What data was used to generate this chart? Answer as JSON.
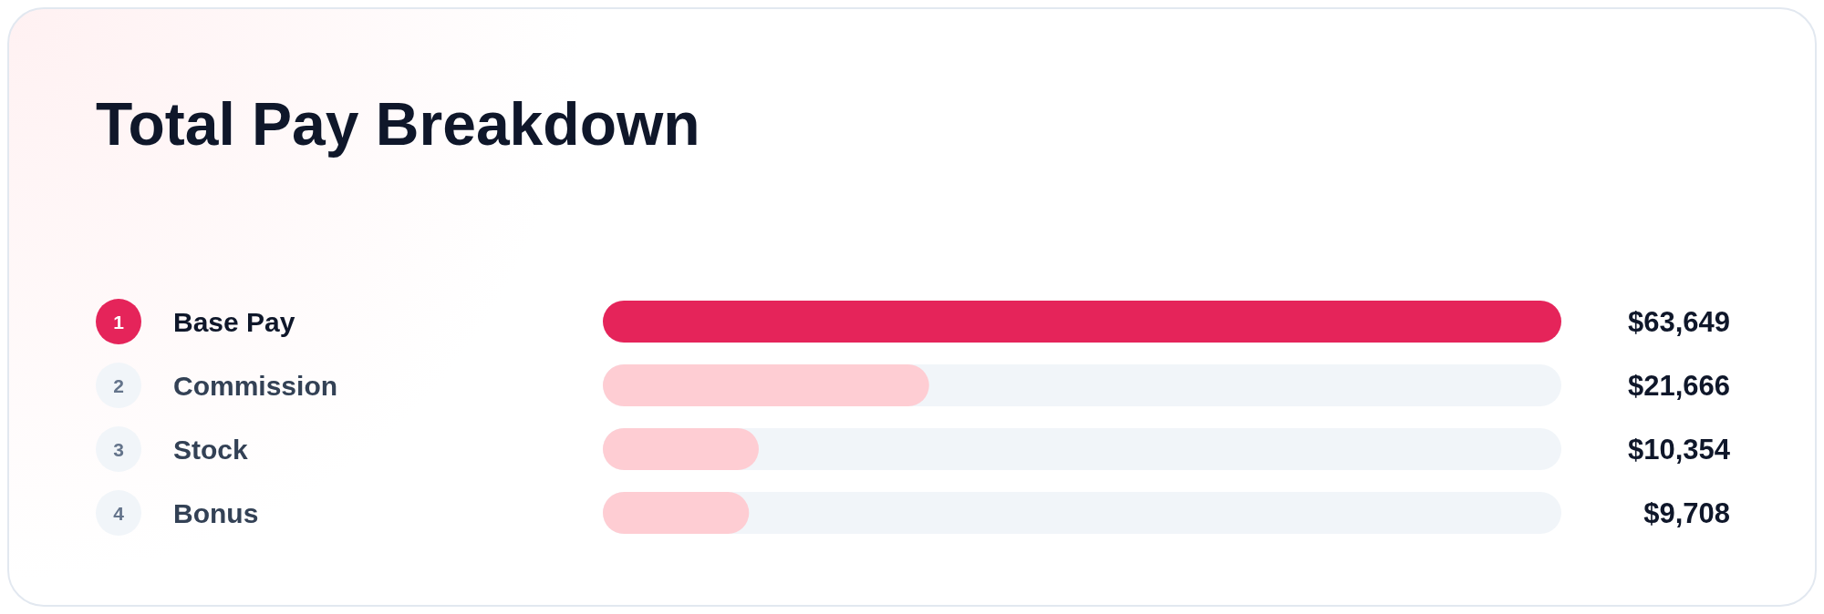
{
  "chart_data": {
    "type": "bar",
    "orientation": "horizontal",
    "title": "Total Pay Breakdown",
    "categories": [
      "Base Pay",
      "Commission",
      "Stock",
      "Bonus"
    ],
    "values": [
      63649,
      21666,
      10354,
      9708
    ],
    "colors": [
      "#e5245a",
      "#fecdd3",
      "#fecdd3",
      "#fecdd3"
    ],
    "value_labels": [
      "$63,649",
      "$21,666",
      "$10,354",
      "$9,708"
    ],
    "annotations": [
      "1",
      "2",
      "3",
      "4"
    ],
    "grid": false,
    "legend": false
  }
}
